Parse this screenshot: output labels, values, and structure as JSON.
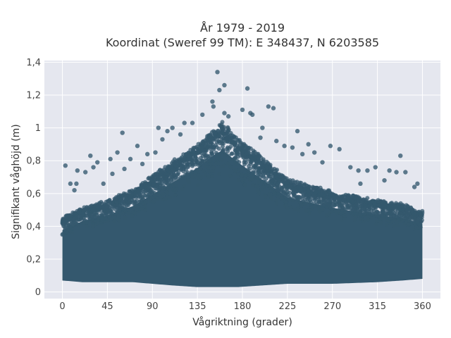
{
  "chart_data": {
    "type": "scatter",
    "title_line1": "År 1979 - 2019",
    "title_line2": "Koordinat (Sweref 99 TM): E 348437, N 6203585",
    "xlabel": "Vågriktning (grader)",
    "ylabel": "Signifikant våghöjd (m)",
    "xlim": [
      -18,
      378
    ],
    "ylim": [
      -0.04,
      1.41
    ],
    "x_ticks": [
      0,
      45,
      90,
      135,
      180,
      225,
      270,
      315,
      360
    ],
    "x_tick_labels": [
      "0",
      "45",
      "90",
      "135",
      "180",
      "225",
      "270",
      "315",
      "360"
    ],
    "y_ticks": [
      0,
      0.2,
      0.4,
      0.6,
      0.8,
      1.0,
      1.2,
      1.4
    ],
    "y_tick_labels": [
      "0",
      "0,2",
      "0,4",
      "0,6",
      "0,8",
      "1",
      "1,2",
      "1,4"
    ],
    "grid": true,
    "colors": {
      "marker": "#34586e",
      "plot_bg": "#e5e7ef",
      "grid": "#ffffff"
    },
    "dense_envelope": {
      "description_points_x": [
        0,
        20,
        45,
        70,
        90,
        110,
        135,
        150,
        160,
        175,
        200,
        225,
        270,
        315,
        340,
        360
      ],
      "y_min": [
        0.07,
        0.06,
        0.06,
        0.06,
        0.05,
        0.04,
        0.03,
        0.03,
        0.03,
        0.03,
        0.04,
        0.05,
        0.05,
        0.06,
        0.07,
        0.08
      ],
      "y_max": [
        0.42,
        0.48,
        0.52,
        0.58,
        0.66,
        0.74,
        0.84,
        0.92,
        0.96,
        0.88,
        0.76,
        0.64,
        0.57,
        0.52,
        0.5,
        0.46
      ]
    },
    "outliers": [
      {
        "x": 155,
        "y": 1.34
      },
      {
        "x": 162,
        "y": 1.26
      },
      {
        "x": 157,
        "y": 1.23
      },
      {
        "x": 185,
        "y": 1.24
      },
      {
        "x": 150,
        "y": 1.16
      },
      {
        "x": 151,
        "y": 1.13
      },
      {
        "x": 206,
        "y": 1.13
      },
      {
        "x": 211,
        "y": 1.12
      },
      {
        "x": 180,
        "y": 1.11
      },
      {
        "x": 188,
        "y": 1.09
      },
      {
        "x": 190,
        "y": 1.08
      },
      {
        "x": 162,
        "y": 1.09
      },
      {
        "x": 166,
        "y": 1.07
      },
      {
        "x": 122,
        "y": 1.03
      },
      {
        "x": 130,
        "y": 1.03
      },
      {
        "x": 96,
        "y": 1.0
      },
      {
        "x": 105,
        "y": 0.98
      },
      {
        "x": 110,
        "y": 1.0
      },
      {
        "x": 60,
        "y": 0.97
      },
      {
        "x": 235,
        "y": 0.98
      },
      {
        "x": 214,
        "y": 0.92
      },
      {
        "x": 246,
        "y": 0.9
      },
      {
        "x": 268,
        "y": 0.89
      },
      {
        "x": 277,
        "y": 0.87
      },
      {
        "x": 252,
        "y": 0.85
      },
      {
        "x": 230,
        "y": 0.88
      },
      {
        "x": 338,
        "y": 0.83
      },
      {
        "x": 75,
        "y": 0.89
      },
      {
        "x": 85,
        "y": 0.84
      },
      {
        "x": 93,
        "y": 0.85
      },
      {
        "x": 55,
        "y": 0.85
      },
      {
        "x": 28,
        "y": 0.83
      },
      {
        "x": 35,
        "y": 0.79
      },
      {
        "x": 48,
        "y": 0.81
      },
      {
        "x": 68,
        "y": 0.81
      },
      {
        "x": 3,
        "y": 0.77
      },
      {
        "x": 15,
        "y": 0.74
      },
      {
        "x": 23,
        "y": 0.73
      },
      {
        "x": 31,
        "y": 0.76
      },
      {
        "x": 288,
        "y": 0.76
      },
      {
        "x": 296,
        "y": 0.74
      },
      {
        "x": 305,
        "y": 0.74
      },
      {
        "x": 313,
        "y": 0.76
      },
      {
        "x": 327,
        "y": 0.74
      },
      {
        "x": 334,
        "y": 0.73
      },
      {
        "x": 343,
        "y": 0.73
      },
      {
        "x": 8,
        "y": 0.66
      },
      {
        "x": 14,
        "y": 0.66
      },
      {
        "x": 355,
        "y": 0.66
      },
      {
        "x": 352,
        "y": 0.64
      },
      {
        "x": 322,
        "y": 0.68
      },
      {
        "x": 298,
        "y": 0.66
      },
      {
        "x": 12,
        "y": 0.62
      },
      {
        "x": 41,
        "y": 0.66
      },
      {
        "x": 50,
        "y": 0.72
      },
      {
        "x": 62,
        "y": 0.75
      },
      {
        "x": 80,
        "y": 0.78
      },
      {
        "x": 260,
        "y": 0.79
      },
      {
        "x": 240,
        "y": 0.84
      },
      {
        "x": 222,
        "y": 0.89
      },
      {
        "x": 198,
        "y": 0.94
      },
      {
        "x": 200,
        "y": 1.0
      },
      {
        "x": 118,
        "y": 0.96
      },
      {
        "x": 100,
        "y": 0.93
      },
      {
        "x": 140,
        "y": 1.08
      }
    ]
  }
}
